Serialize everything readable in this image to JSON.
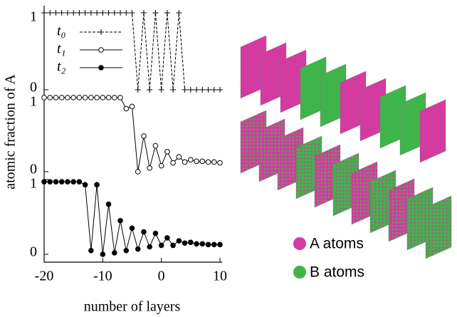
{
  "chart_data": [
    {
      "type": "line",
      "y_label": "atomic fraction of A",
      "x": [
        -20,
        -19,
        -18,
        -17,
        -16,
        -15,
        -14,
        -13,
        -12,
        -11,
        -10,
        -9,
        -8,
        -7,
        -6,
        -5,
        -4,
        -3,
        -2,
        -1,
        0,
        1,
        2,
        3,
        4,
        5,
        6,
        7,
        8,
        9,
        10
      ],
      "xlim": [
        -20,
        10
      ],
      "ylim": [
        0,
        1
      ],
      "yticks": [
        0,
        1
      ],
      "legend": "upper left",
      "series": [
        {
          "name": "t₀",
          "color": "#000000",
          "marker": "plus",
          "linestyle": "dashed",
          "values": [
            1,
            1,
            1,
            1,
            1,
            1,
            1,
            1,
            1,
            1,
            1,
            1,
            1,
            1,
            1,
            1,
            0,
            1,
            0,
            1,
            0,
            1,
            0,
            1,
            0,
            0,
            0,
            0,
            0,
            0,
            0
          ]
        }
      ]
    },
    {
      "type": "line",
      "x": [
        -20,
        -19,
        -18,
        -17,
        -16,
        -15,
        -14,
        -13,
        -12,
        -11,
        -10,
        -9,
        -8,
        -7,
        -6,
        -5,
        -4,
        -3,
        -2,
        -1,
        0,
        1,
        2,
        3,
        4,
        5,
        6,
        7,
        8,
        9,
        10
      ],
      "xlim": [
        -20,
        10
      ],
      "ylim": [
        0,
        1
      ],
      "yticks": [
        0,
        1
      ],
      "series": [
        {
          "name": "t₁",
          "color": "#000000",
          "marker": "circle-open",
          "linestyle": "solid",
          "values": [
            1,
            1,
            1,
            1,
            1,
            1,
            1,
            1,
            1,
            1,
            1,
            1,
            1,
            1,
            0.85,
            0.88,
            0,
            0.48,
            0.05,
            0.35,
            0.08,
            0.27,
            0.12,
            0.2,
            0.13,
            0.16,
            0.14,
            0.14,
            0.13,
            0.13,
            0.12
          ]
        }
      ]
    },
    {
      "type": "line",
      "x_label": "number of layers",
      "x": [
        -20,
        -19,
        -18,
        -17,
        -16,
        -15,
        -14,
        -13,
        -12,
        -11,
        -10,
        -9,
        -8,
        -7,
        -6,
        -5,
        -4,
        -3,
        -2,
        -1,
        0,
        1,
        2,
        3,
        4,
        5,
        6,
        7,
        8,
        9,
        10
      ],
      "xlim": [
        -20,
        10
      ],
      "xticks": [
        -20,
        -10,
        0,
        10
      ],
      "ylim": [
        0,
        1
      ],
      "yticks": [
        0,
        1
      ],
      "series": [
        {
          "name": "t₂",
          "color": "#000000",
          "marker": "circle",
          "linestyle": "solid",
          "values": [
            0.97,
            0.97,
            0.97,
            0.97,
            0.97,
            0.97,
            0.97,
            0.93,
            0.05,
            0.93,
            0,
            0.67,
            0.02,
            0.45,
            0.05,
            0.35,
            0.07,
            0.3,
            0.1,
            0.28,
            0.12,
            0.22,
            0.12,
            0.18,
            0.15,
            0.16,
            0.14,
            0.14,
            0.13,
            0.13,
            0.13
          ]
        }
      ]
    }
  ],
  "illustration": {
    "legend": [
      "A atoms",
      "B atoms"
    ]
  }
}
